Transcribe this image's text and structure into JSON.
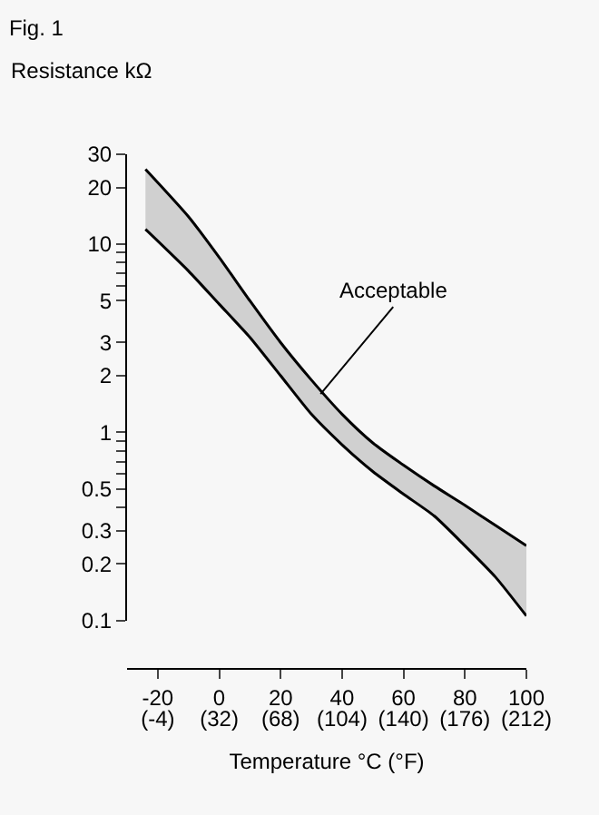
{
  "chart_data": {
    "type": "line",
    "title": "Fig. 1",
    "ylabel": "Resistance kΩ",
    "xlabel": "Temperature °C (°F)",
    "x": [
      -24,
      -10,
      0,
      10,
      20,
      30,
      40,
      50,
      60,
      70,
      80,
      90,
      100
    ],
    "series": [
      {
        "color": "#000000",
        "values": [
          25,
          14,
          8.5,
          5.0,
          3.0,
          1.9,
          1.25,
          0.88,
          0.67,
          0.52,
          0.41,
          0.32,
          0.25
        ],
        "upper": [
          25,
          14,
          8.5,
          5.0,
          3.0,
          1.9,
          1.25,
          0.88,
          0.67,
          0.52,
          0.41,
          0.32,
          0.25
        ],
        "lower": [
          12,
          7.2,
          4.8,
          3.2,
          2.0,
          1.25,
          0.86,
          0.62,
          0.47,
          0.36,
          0.25,
          0.17,
          0.106
        ]
      },
      {
        "color": "#000000",
        "values": [
          12,
          7.2,
          4.8,
          3.2,
          2.0,
          1.25,
          0.86,
          0.62,
          0.47,
          0.36,
          0.25,
          0.17,
          0.106
        ]
      }
    ],
    "log": "y",
    "xlim": [
      -30,
      100
    ],
    "ylim": [
      0.1,
      30
    ],
    "xticks": [
      -20,
      0,
      20,
      40,
      60,
      80,
      100
    ],
    "x2lim": [
      -22,
      212
    ],
    "x2ticks": [
      {
        "value": -4,
        "label": "(-4)"
      },
      {
        "value": 32,
        "label": "(32)"
      },
      {
        "value": 68,
        "label": "(68)"
      },
      {
        "value": 104,
        "label": "(104)"
      },
      {
        "value": 140,
        "label": "(140)"
      },
      {
        "value": 176,
        "label": "(176)"
      },
      {
        "value": 212,
        "label": "(212)"
      }
    ],
    "yticks": [
      0.1,
      0.2,
      0.3,
      {
        "value": 0.4,
        "label": null
      },
      0.5,
      {
        "value": 0.6,
        "label": null
      },
      {
        "value": 0.7,
        "label": null
      },
      {
        "value": 0.8,
        "label": null
      },
      {
        "value": 0.9,
        "label": null
      },
      1,
      2,
      3,
      5,
      {
        "value": 6,
        "label": null
      },
      {
        "value": 7,
        "label": null
      },
      {
        "value": 8,
        "label": null
      },
      {
        "value": 9,
        "label": null
      },
      10,
      20,
      30
    ],
    "annotations": [
      {
        "text": "Acceptable",
        "x": 33,
        "y": 1.6
      }
    ],
    "grid": false,
    "marker": "none",
    "line_style": "solid"
  }
}
